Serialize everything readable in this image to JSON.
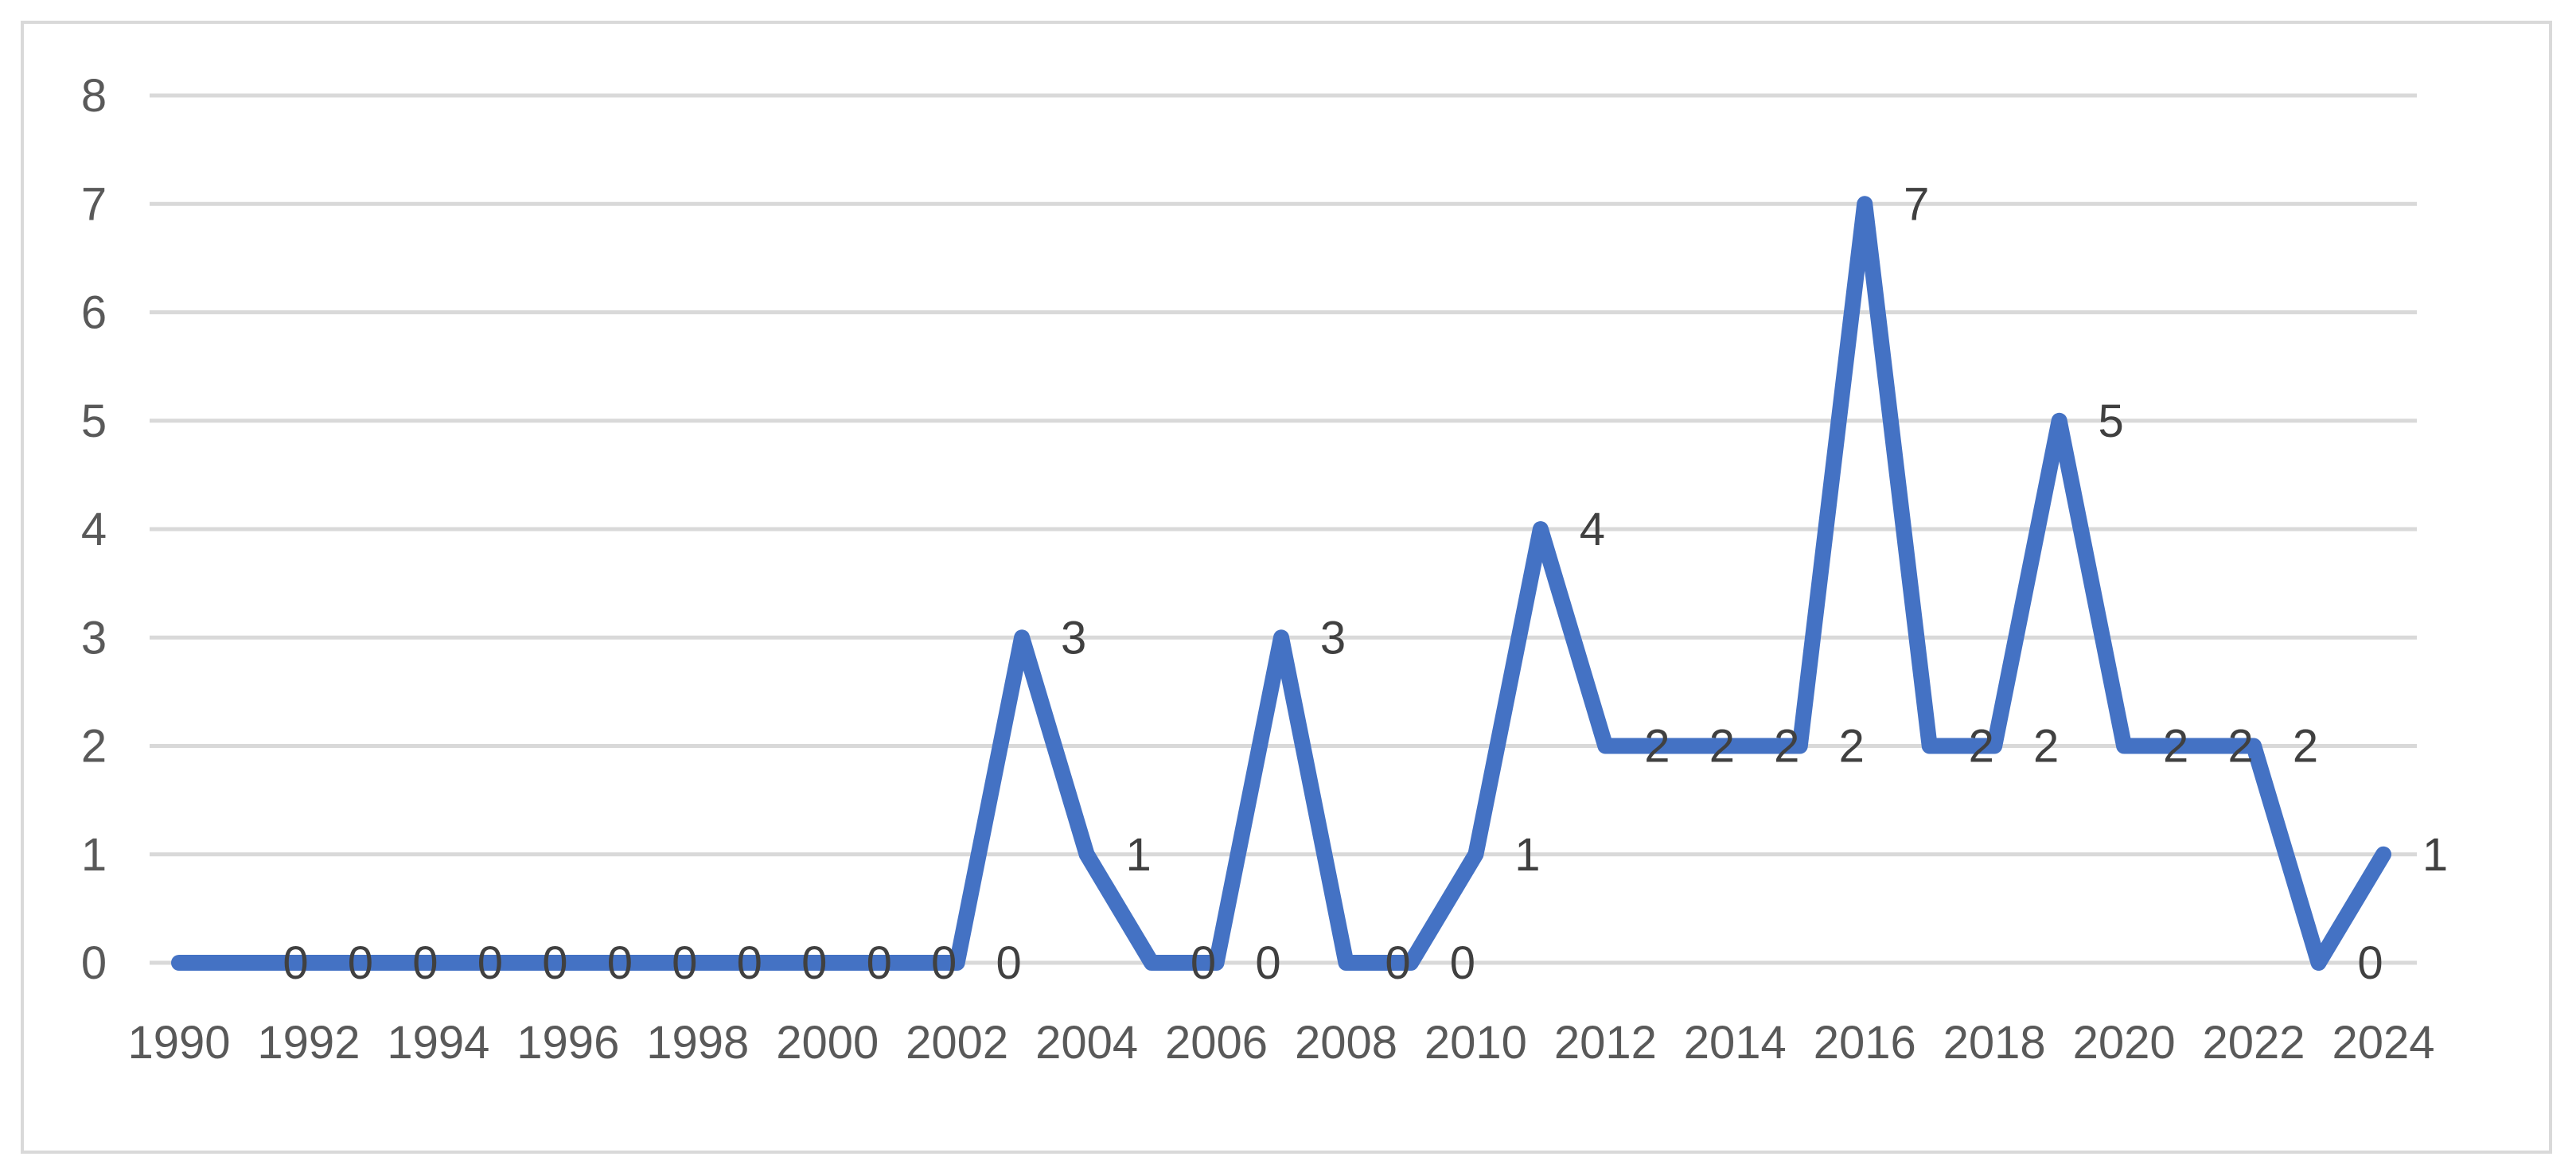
{
  "chart_data": {
    "type": "line",
    "title": "",
    "xlabel": "",
    "ylabel": "",
    "x": [
      1990,
      1991,
      1992,
      1993,
      1994,
      1995,
      1996,
      1997,
      1998,
      1999,
      2000,
      2001,
      2002,
      2003,
      2004,
      2005,
      2006,
      2007,
      2008,
      2009,
      2010,
      2011,
      2012,
      2013,
      2014,
      2015,
      2016,
      2017,
      2018,
      2019,
      2020,
      2021,
      2022,
      2023,
      2024
    ],
    "x_tick_labels": [
      "1990",
      "1992",
      "1994",
      "1996",
      "1998",
      "2000",
      "2002",
      "2004",
      "2006",
      "2008",
      "2010",
      "2012",
      "2014",
      "2016",
      "2018",
      "2020",
      "2022",
      "2024"
    ],
    "y_tick_labels": [
      "0",
      "1",
      "2",
      "3",
      "4",
      "5",
      "6",
      "7",
      "8"
    ],
    "ylim": [
      0,
      8
    ],
    "grid": true,
    "legend": "none",
    "series": [
      {
        "values": [
          0,
          0,
          0,
          0,
          0,
          0,
          0,
          0,
          0,
          0,
          0,
          0,
          0,
          3,
          1,
          0,
          0,
          3,
          0,
          0,
          1,
          4,
          2,
          2,
          2,
          2,
          7,
          2,
          2,
          5,
          2,
          2,
          2,
          0,
          1
        ],
        "color": "#4472c4",
        "data_labels_shown_for_x": [
          1991,
          1992,
          1993,
          1994,
          1995,
          1996,
          1997,
          1998,
          1999,
          2000,
          2001,
          2002,
          2003,
          2004,
          2005,
          2006,
          2007,
          2008,
          2009,
          2010,
          2011,
          2012,
          2013,
          2014,
          2015,
          2016,
          2017,
          2018,
          2019,
          2020,
          2021,
          2022,
          2023,
          2024
        ]
      }
    ],
    "gridline_color": "#d9d9d9"
  }
}
